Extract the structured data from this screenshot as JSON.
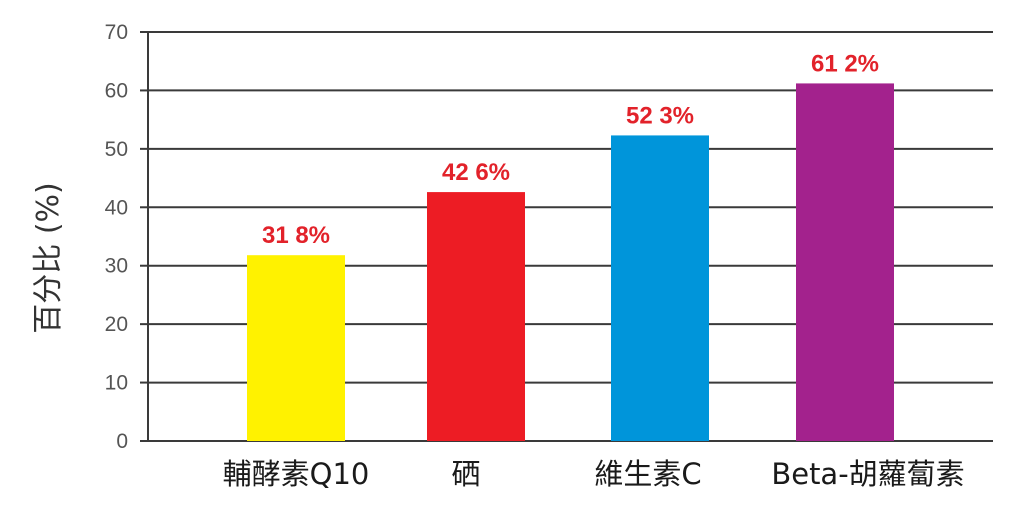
{
  "chart_data": {
    "type": "bar",
    "ylabel": "百分比 (%)",
    "ylim": [
      0,
      70
    ],
    "yticks": [
      0,
      10,
      20,
      30,
      40,
      50,
      60,
      70
    ],
    "grid": true,
    "categories": [
      "輔酵素Q10",
      "硒",
      "維生素C",
      "Beta-胡蘿蔔素"
    ],
    "values": [
      31.8,
      42.6,
      52.3,
      61.2
    ],
    "value_labels": [
      "31 8%",
      "42 6%",
      "52 3%",
      "61 2%"
    ],
    "bar_colors": [
      "#fff200",
      "#ed1c24",
      "#0095da",
      "#a3228d"
    ],
    "label_color": "#e2222a"
  }
}
